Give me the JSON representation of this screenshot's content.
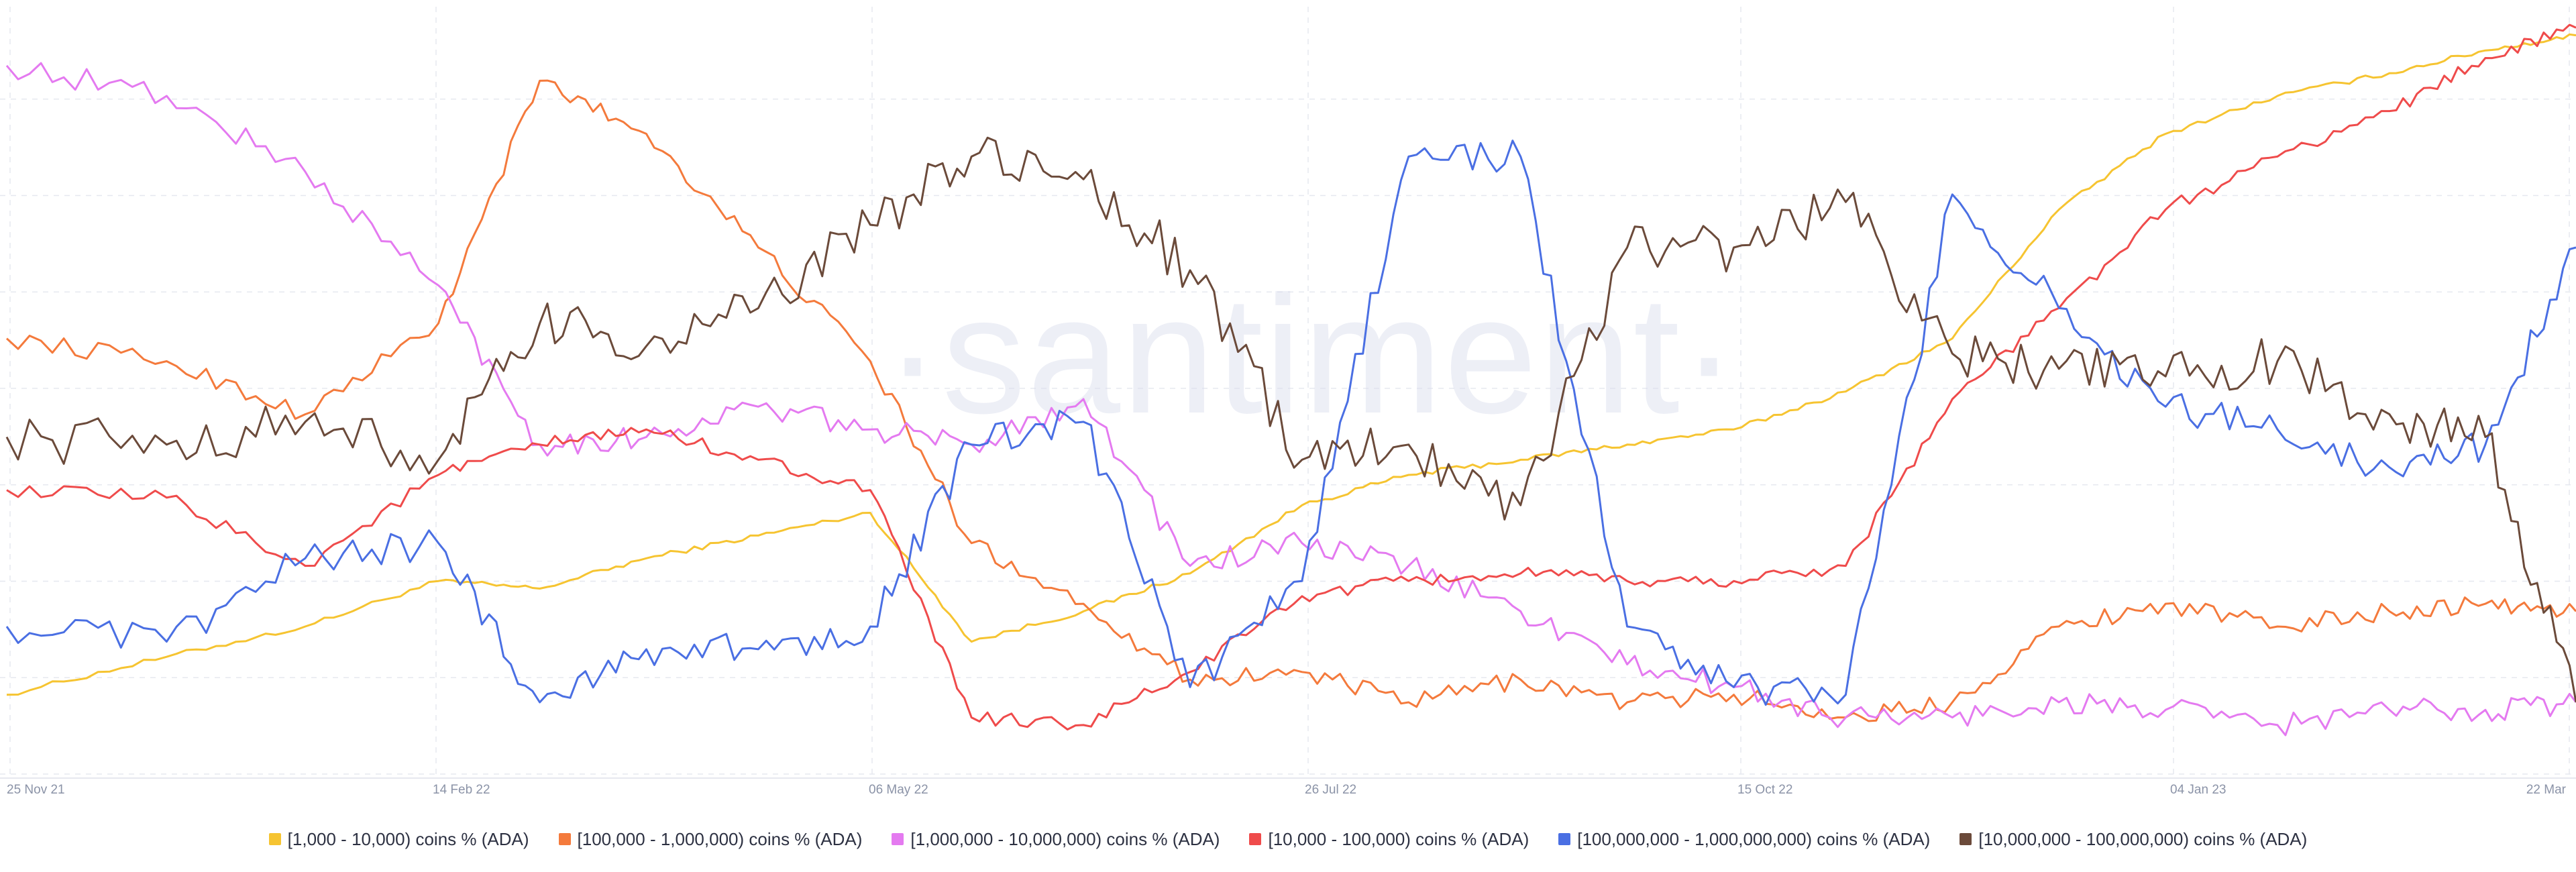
{
  "watermark": "·santiment·",
  "chart_data": {
    "type": "line",
    "x_ticks": [
      "25 Nov 21",
      "14 Feb 22",
      "06 May 22",
      "26 Jul 22",
      "15 Oct 22",
      "04 Jan 23",
      "22 Mar"
    ],
    "x_range": [
      "2021-11-25",
      "2023-03-22"
    ],
    "x": [
      "2021-11-25",
      "2021-12-25",
      "2022-01-20",
      "2022-02-14",
      "2022-03-05",
      "2022-03-25",
      "2022-04-15",
      "2022-05-06",
      "2022-05-25",
      "2022-06-15",
      "2022-07-05",
      "2022-07-26",
      "2022-08-15",
      "2022-09-05",
      "2022-09-25",
      "2022-10-15",
      "2022-11-05",
      "2022-11-25",
      "2022-12-15",
      "2023-01-04",
      "2023-01-25",
      "2023-02-15",
      "2023-03-05",
      "2023-03-22"
    ],
    "y_axis_labels": false,
    "grid": true,
    "legend_position": "bottom",
    "series": [
      {
        "name": "[1,000 - 10,000) coins % (ADA)",
        "color": "#f6c431",
        "values": [
          11,
          16,
          20,
          26,
          25,
          29,
          32,
          35,
          18,
          22,
          27,
          36,
          40,
          42,
          44,
          46,
          51,
          58,
          75,
          85,
          90,
          93,
          96,
          98
        ]
      },
      {
        "name": "[100,000 - 1,000,000) coins % (ADA)",
        "color": "#f47a3c",
        "values": [
          58,
          55,
          48,
          60,
          92,
          85,
          70,
          55,
          31,
          23,
          13,
          14,
          10,
          13,
          10,
          11,
          8,
          10,
          20,
          23,
          20,
          22,
          23,
          22
        ]
      },
      {
        "name": "[1,000,000 - 10,000,000) coins % (ADA)",
        "color": "#e47af0",
        "values": [
          94,
          90,
          80,
          65,
          44,
          45,
          49,
          46,
          44,
          50,
          28,
          31,
          28,
          22,
          15,
          12,
          8,
          8,
          10,
          9,
          7,
          9,
          9,
          10
        ]
      },
      {
        "name": "[10,000 - 100,000) coins % (ADA)",
        "color": "#ef4b4b",
        "values": [
          38,
          37,
          28,
          40,
          44,
          46,
          42,
          38,
          8,
          7,
          14,
          24,
          26,
          27,
          26,
          26,
          28,
          50,
          62,
          75,
          82,
          88,
          95,
          99
        ]
      },
      {
        "name": "[100,000,000 - 1,000,000,000) coins % (ADA)",
        "color": "#4a6fe3",
        "values": [
          20,
          18,
          29,
          31,
          10,
          17,
          17,
          20,
          44,
          47,
          12,
          26,
          82,
          82,
          20,
          12,
          11,
          77,
          62,
          49,
          46,
          41,
          44,
          70
        ]
      },
      {
        "name": "[10,000,000 - 100,000,000) coins % (ADA)",
        "color": "#6b4a3a",
        "values": [
          45,
          44,
          47,
          42,
          60,
          57,
          62,
          73,
          82,
          79,
          67,
          42,
          44,
          36,
          70,
          70,
          76,
          56,
          54,
          53,
          55,
          48,
          45,
          10
        ]
      }
    ]
  }
}
